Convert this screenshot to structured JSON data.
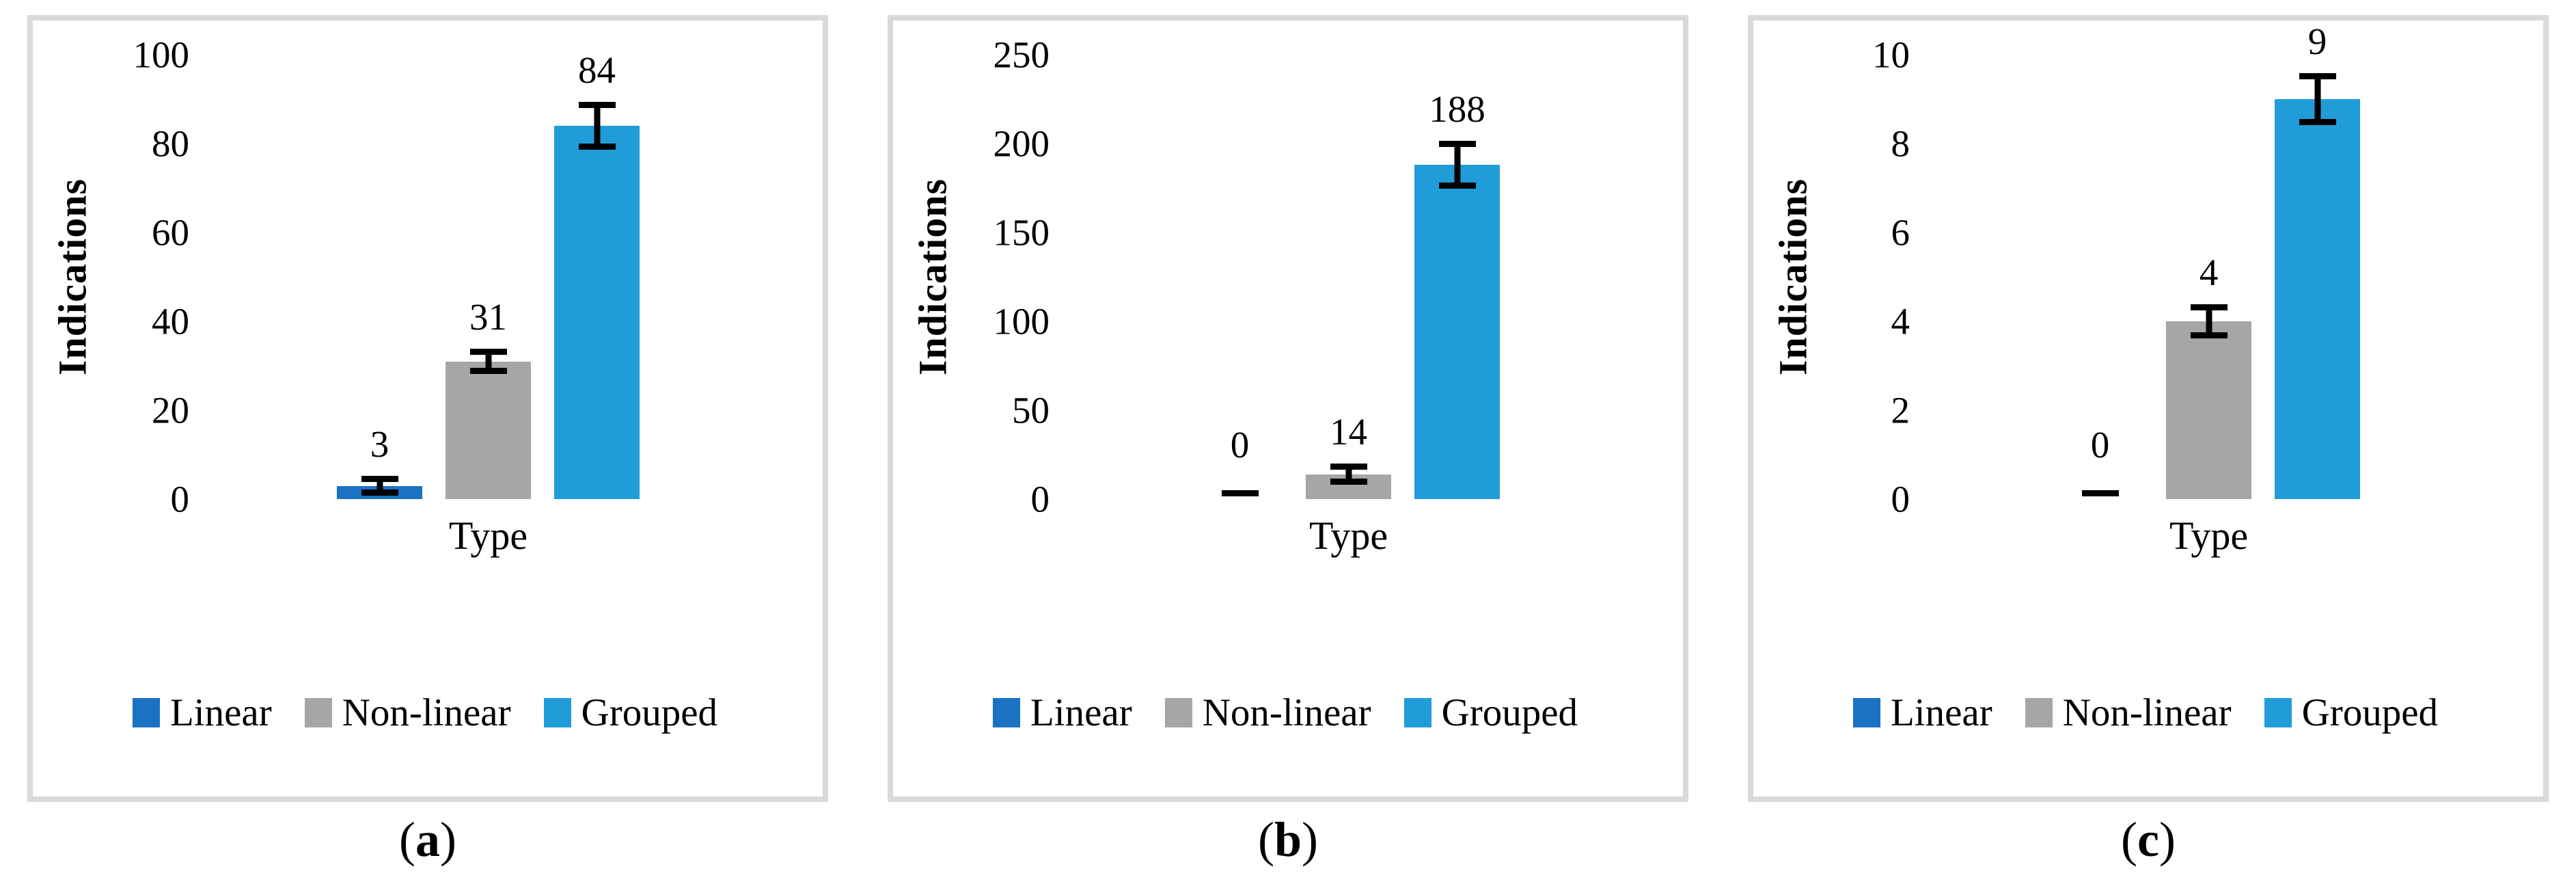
{
  "figure": {
    "background": "#ffffff",
    "panel_border_color": "#d9d9d9",
    "text_color": "#000000"
  },
  "legend": {
    "position": "bottom",
    "items": [
      {
        "label": "Linear",
        "color": "#1a72c4"
      },
      {
        "label": "Non-linear",
        "color": "#a6a6a6"
      },
      {
        "label": "Grouped",
        "color": "#209dd9"
      }
    ]
  },
  "chart_data": [
    {
      "type": "bar",
      "caption": "a",
      "title": "",
      "xlabel": "Type",
      "ylabel": "Indications",
      "categories": [
        "Linear",
        "Non-linear",
        "Grouped"
      ],
      "values": [
        3,
        31,
        84
      ],
      "errors": [
        0.8,
        1.5,
        4
      ],
      "data_labels": [
        "3",
        "31",
        "84"
      ],
      "ylim": [
        0,
        100
      ],
      "yticks": [
        0,
        20,
        40,
        60,
        80,
        100
      ],
      "yticks_desc": [
        "100",
        "80",
        "60",
        "40",
        "20",
        "0"
      ],
      "colors": [
        "#1a72c4",
        "#a6a6a6",
        "#209dd9"
      ],
      "grid": false,
      "legend_position": "bottom"
    },
    {
      "type": "bar",
      "caption": "b",
      "title": "",
      "xlabel": "Type",
      "ylabel": "Indications",
      "categories": [
        "Linear",
        "Non-linear",
        "Grouped"
      ],
      "values": [
        0,
        14,
        188
      ],
      "errors": [
        0,
        2.5,
        10
      ],
      "data_labels": [
        "0",
        "14",
        "188"
      ],
      "ylim": [
        0,
        250
      ],
      "yticks": [
        0,
        50,
        100,
        150,
        200,
        250
      ],
      "yticks_desc": [
        "250",
        "200",
        "150",
        "100",
        "50",
        "0"
      ],
      "colors": [
        "#1a72c4",
        "#a6a6a6",
        "#209dd9"
      ],
      "grid": false,
      "legend_position": "bottom"
    },
    {
      "type": "bar",
      "caption": "c",
      "title": "",
      "xlabel": "Type",
      "ylabel": "Indications",
      "categories": [
        "Linear",
        "Non-linear",
        "Grouped"
      ],
      "values": [
        0,
        4,
        9
      ],
      "errors": [
        0,
        0.25,
        0.45
      ],
      "data_labels": [
        "0",
        "4",
        "9"
      ],
      "ylim": [
        0,
        10
      ],
      "yticks": [
        0,
        2,
        4,
        6,
        8,
        10
      ],
      "yticks_desc": [
        "10",
        "8",
        "6",
        "4",
        "2",
        "0"
      ],
      "colors": [
        "#1a72c4",
        "#a6a6a6",
        "#209dd9"
      ],
      "grid": false,
      "legend_position": "bottom"
    }
  ]
}
